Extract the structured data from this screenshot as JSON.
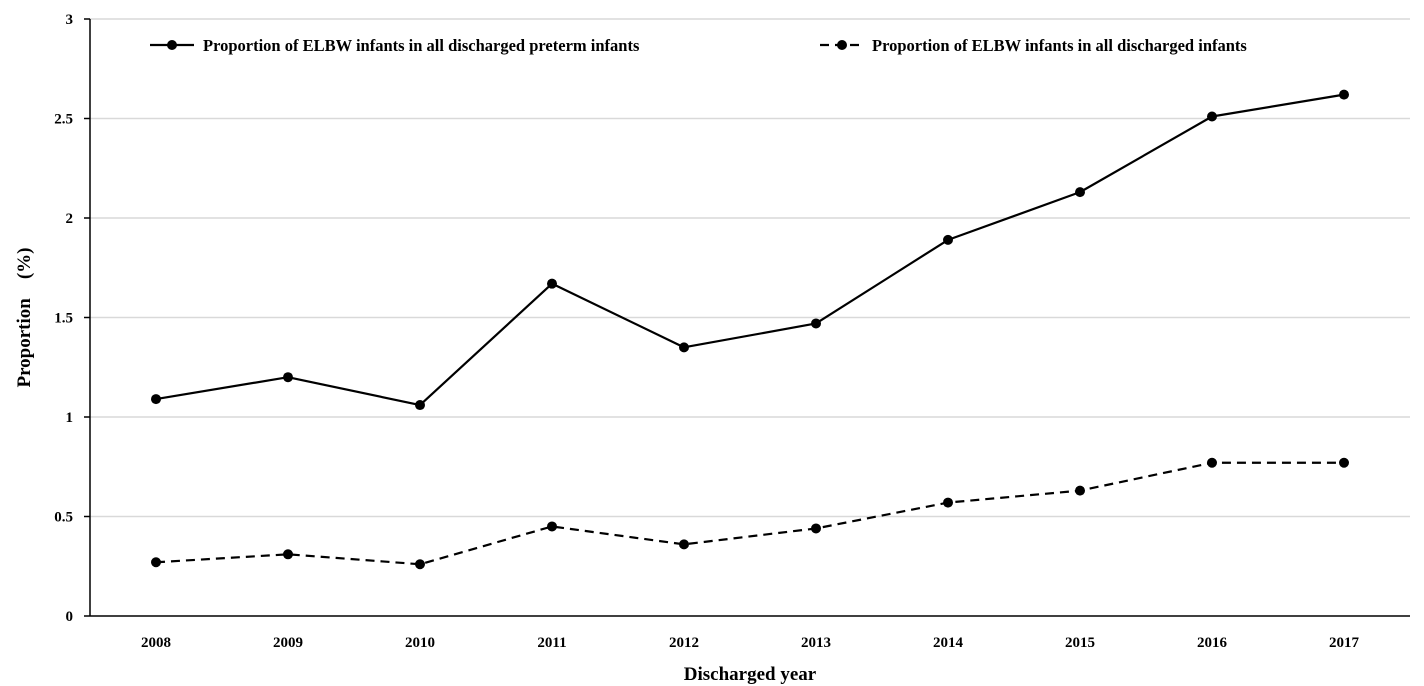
{
  "chart_data": {
    "type": "line",
    "xlabel": "Discharged year",
    "ylabel": "Proportion　(%)",
    "ylim": [
      0,
      3
    ],
    "yticks": [
      "0",
      "0.5",
      "1",
      "1.5",
      "2",
      "2.5",
      "3"
    ],
    "grid": true,
    "legend_position": "top",
    "categories": [
      "2008",
      "2009",
      "2010",
      "2011",
      "2012",
      "2013",
      "2014",
      "2015",
      "2016",
      "2017"
    ],
    "series": [
      {
        "name": "Proportion of ELBW infants in all discharged preterm infants",
        "style": "solid",
        "color": "#000000",
        "values": [
          1.09,
          1.2,
          1.06,
          1.67,
          1.35,
          1.47,
          1.89,
          2.13,
          2.51,
          2.62
        ]
      },
      {
        "name": "Proportion of ELBW infants in all discharged infants",
        "style": "dashed",
        "color": "#000000",
        "values": [
          0.27,
          0.31,
          0.26,
          0.45,
          0.36,
          0.44,
          0.57,
          0.63,
          0.77,
          0.77
        ]
      }
    ]
  }
}
